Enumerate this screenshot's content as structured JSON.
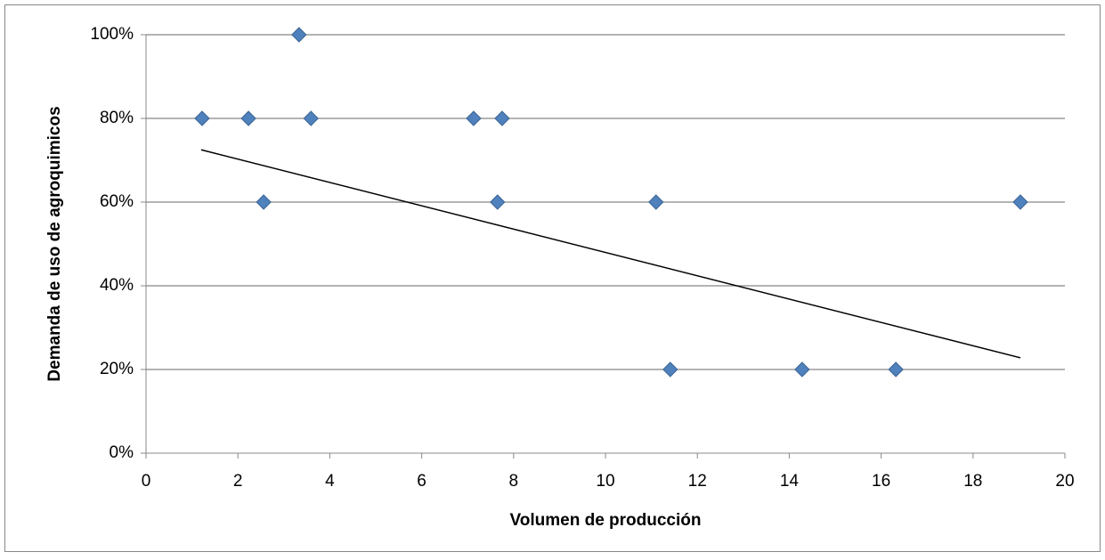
{
  "chart_data": {
    "type": "scatter",
    "xlabel": "Volumen de producción",
    "ylabel": "Demanda de uso de agroquimicos",
    "series": [
      {
        "color": "#4f81bd",
        "x": [
          1.22,
          2.23,
          2.56,
          3.33,
          3.59,
          7.13,
          7.75,
          7.65,
          11.1,
          11.41,
          14.28,
          16.32,
          19.03
        ],
        "values": [
          80,
          80,
          60,
          100,
          80,
          80,
          80,
          60,
          60,
          20,
          20,
          20,
          60
        ]
      }
    ],
    "trendline": {
      "color": "#000000",
      "x": [
        1.2,
        19.03
      ],
      "values": [
        72.5,
        22.8
      ]
    },
    "xlim": [
      0,
      20
    ],
    "xticks": [
      0,
      2,
      4,
      6,
      8,
      10,
      12,
      14,
      16,
      18,
      20
    ],
    "ylim": [
      0,
      100
    ],
    "yticks": [
      {
        "value": 0,
        "label": "0%"
      },
      {
        "value": 20,
        "label": "20%"
      },
      {
        "value": 40,
        "label": "40%"
      },
      {
        "value": 60,
        "label": "60%"
      },
      {
        "value": 80,
        "label": "80%"
      },
      {
        "value": 100,
        "label": "100%"
      }
    ],
    "grid": true
  }
}
